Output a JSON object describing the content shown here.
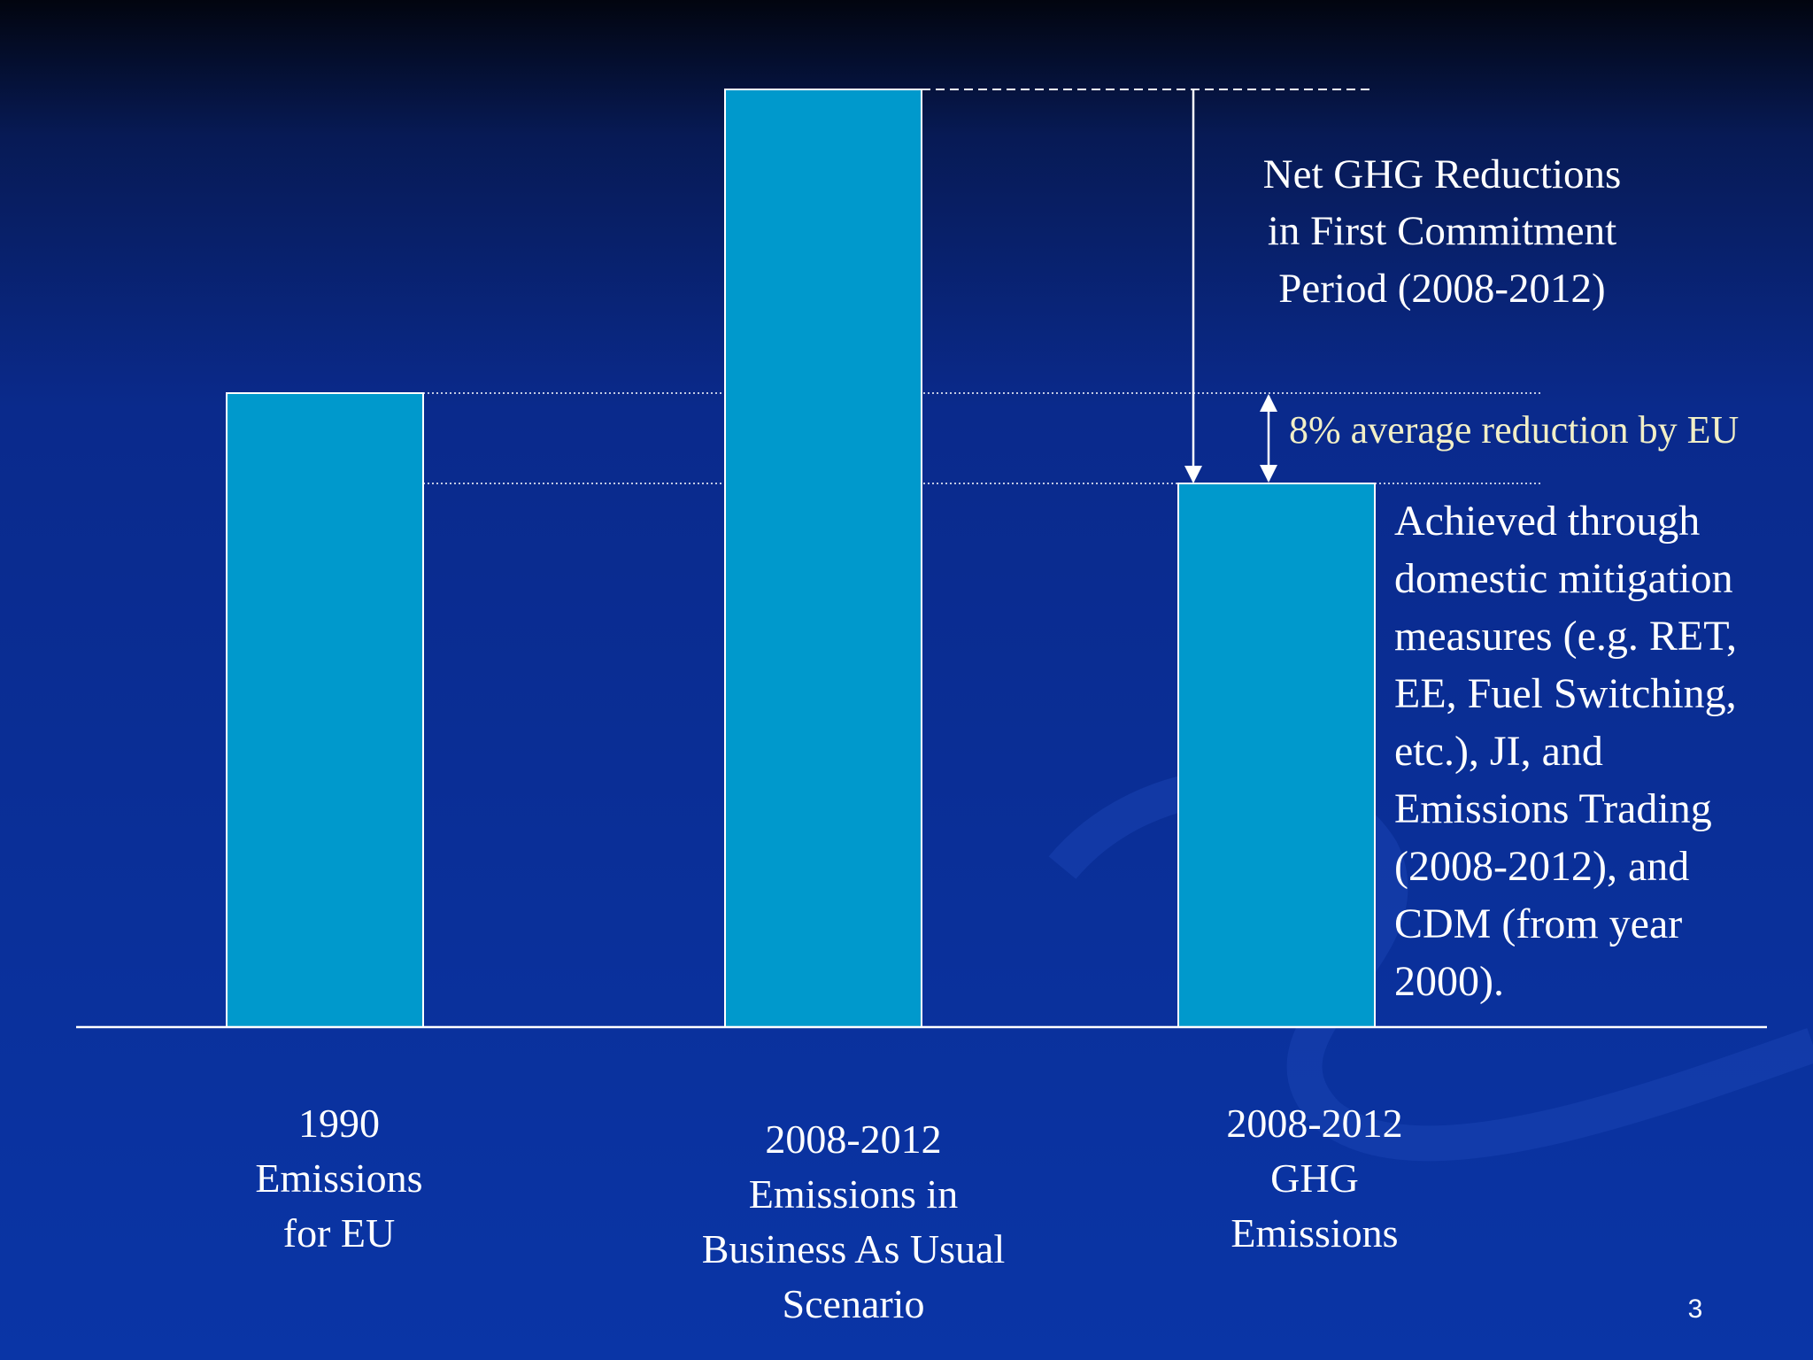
{
  "annotations": {
    "net_reductions": [
      "Net GHG Reductions",
      "in First Commitment",
      "Period (2008-2012)"
    ],
    "average_reduction": "8% average reduction by EU",
    "achieved": [
      "Achieved through",
      "domestic mitigation",
      "measures (e.g. RET,",
      "EE, Fuel Switching,",
      "etc.), JI, and",
      "Emissions Trading",
      "(2008-2012), and",
      "CDM (from year",
      "2000)."
    ]
  },
  "bars": [
    {
      "label": [
        "1990",
        "Emissions",
        "for EU"
      ]
    },
    {
      "label": [
        "2008-2012",
        "Emissions in",
        "Business As Usual",
        "Scenario"
      ]
    },
    {
      "label": [
        "2008-2012",
        "GHG",
        "Emissions"
      ]
    }
  ],
  "page_number": "3"
}
